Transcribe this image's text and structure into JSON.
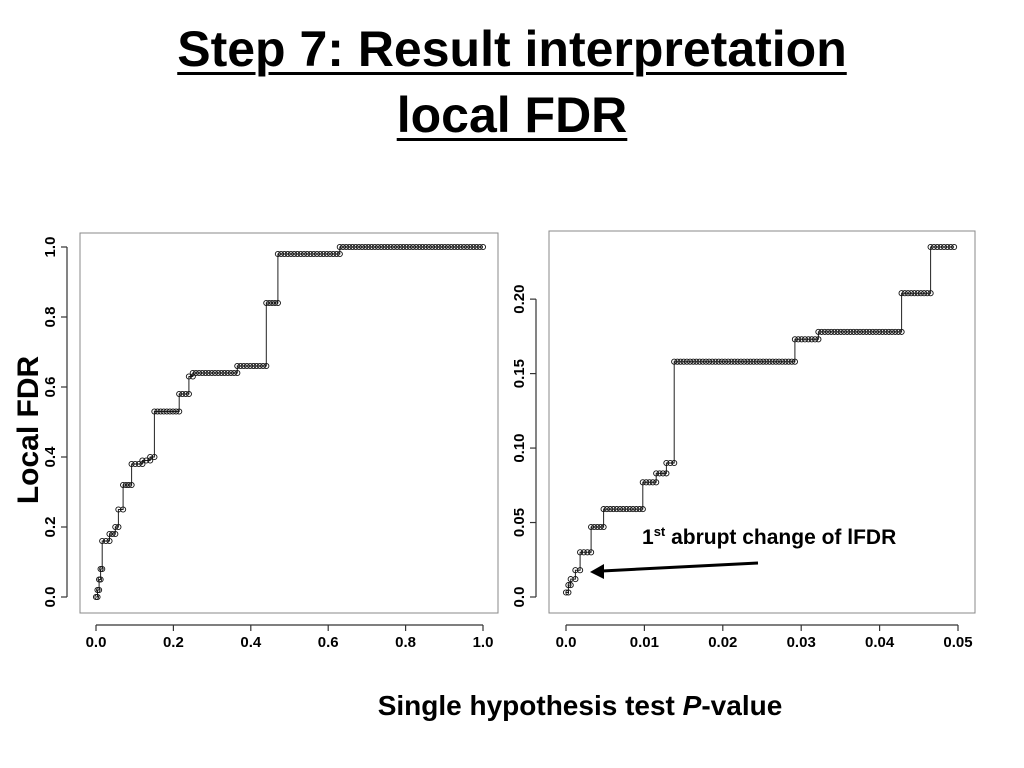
{
  "title_line1": "Step 7: Result interpretation",
  "title_line2": "local FDR",
  "y_axis_label": "Local FDR",
  "x_axis_label_prefix": "Single hypothesis test ",
  "x_axis_label_italic": "P",
  "x_axis_label_suffix": "-value",
  "annotation": {
    "ordinal": "1",
    "superscript": "st",
    "text": " abrupt change of lFDR"
  },
  "chart_data": [
    {
      "type": "scatter",
      "title": "",
      "xlabel": "Single hypothesis test P-value",
      "ylabel": "Local FDR",
      "xlim": [
        0,
        1.0
      ],
      "ylim": [
        0,
        1.0
      ],
      "x_ticks": [
        "0.0",
        "0.2",
        "0.4",
        "0.6",
        "0.8",
        "1.0"
      ],
      "y_ticks": [
        "0.0",
        "0.2",
        "0.4",
        "0.6",
        "0.8",
        "1.0"
      ],
      "steps": [
        {
          "x0": 0.0,
          "x1": 0.004,
          "y": 0.0
        },
        {
          "x0": 0.004,
          "x1": 0.008,
          "y": 0.02
        },
        {
          "x0": 0.008,
          "x1": 0.012,
          "y": 0.05
        },
        {
          "x0": 0.012,
          "x1": 0.016,
          "y": 0.08
        },
        {
          "x0": 0.016,
          "x1": 0.035,
          "y": 0.16
        },
        {
          "x0": 0.035,
          "x1": 0.05,
          "y": 0.18
        },
        {
          "x0": 0.05,
          "x1": 0.058,
          "y": 0.2
        },
        {
          "x0": 0.058,
          "x1": 0.07,
          "y": 0.25
        },
        {
          "x0": 0.07,
          "x1": 0.092,
          "y": 0.32
        },
        {
          "x0": 0.092,
          "x1": 0.12,
          "y": 0.38
        },
        {
          "x0": 0.12,
          "x1": 0.14,
          "y": 0.39
        },
        {
          "x0": 0.14,
          "x1": 0.151,
          "y": 0.4
        },
        {
          "x0": 0.151,
          "x1": 0.215,
          "y": 0.53
        },
        {
          "x0": 0.215,
          "x1": 0.24,
          "y": 0.58
        },
        {
          "x0": 0.24,
          "x1": 0.25,
          "y": 0.63
        },
        {
          "x0": 0.25,
          "x1": 0.365,
          "y": 0.64
        },
        {
          "x0": 0.365,
          "x1": 0.44,
          "y": 0.66
        },
        {
          "x0": 0.44,
          "x1": 0.47,
          "y": 0.84
        },
        {
          "x0": 0.47,
          "x1": 0.63,
          "y": 0.98
        },
        {
          "x0": 0.63,
          "x1": 1.0,
          "y": 1.0
        }
      ]
    },
    {
      "type": "scatter",
      "title": "",
      "xlabel": "Single hypothesis test P-value",
      "ylabel": "",
      "xlim": [
        0,
        0.05
      ],
      "ylim": [
        0,
        0.235
      ],
      "x_ticks": [
        "0.0",
        "0.01",
        "0.02",
        "0.03",
        "0.04",
        "0.05"
      ],
      "y_ticks": [
        "0.0",
        "0.05",
        "0.10",
        "0.15",
        "0.20"
      ],
      "steps": [
        {
          "x0": 0.0,
          "x1": 0.0003,
          "y": 0.003
        },
        {
          "x0": 0.0003,
          "x1": 0.0006,
          "y": 0.008
        },
        {
          "x0": 0.0006,
          "x1": 0.0012,
          "y": 0.012
        },
        {
          "x0": 0.0012,
          "x1": 0.0018,
          "y": 0.018
        },
        {
          "x0": 0.0018,
          "x1": 0.0032,
          "y": 0.03
        },
        {
          "x0": 0.0032,
          "x1": 0.0048,
          "y": 0.047
        },
        {
          "x0": 0.0048,
          "x1": 0.0098,
          "y": 0.059
        },
        {
          "x0": 0.0098,
          "x1": 0.0115,
          "y": 0.077
        },
        {
          "x0": 0.0115,
          "x1": 0.0128,
          "y": 0.083
        },
        {
          "x0": 0.0128,
          "x1": 0.0138,
          "y": 0.09
        },
        {
          "x0": 0.0138,
          "x1": 0.0292,
          "y": 0.158
        },
        {
          "x0": 0.0292,
          "x1": 0.0322,
          "y": 0.173
        },
        {
          "x0": 0.0322,
          "x1": 0.0428,
          "y": 0.178
        },
        {
          "x0": 0.0428,
          "x1": 0.0465,
          "y": 0.204
        },
        {
          "x0": 0.0465,
          "x1": 0.0495,
          "y": 0.235
        }
      ]
    }
  ]
}
